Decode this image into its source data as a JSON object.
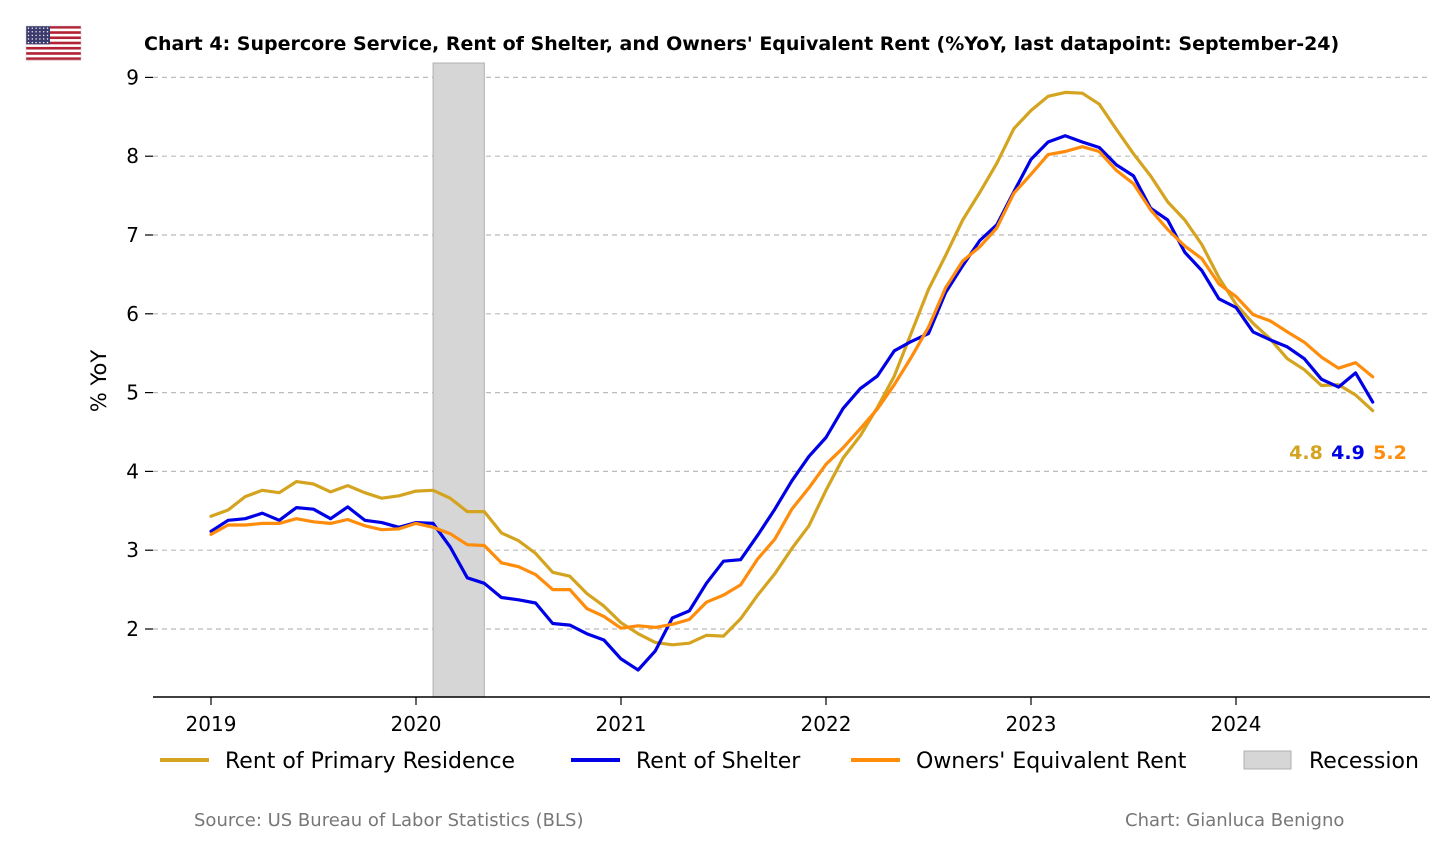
{
  "chart_data": {
    "type": "line",
    "title": "Chart 4: Supercore Service, Rent of Shelter, and Owners' Equivalent Rent (%YoY, last datapoint: September-24)",
    "ylabel": "% YoY",
    "xlabel": "",
    "x_tick_labels": [
      "2019",
      "2020",
      "2021",
      "2022",
      "2023",
      "2024"
    ],
    "y_tick_labels": [
      "2",
      "3",
      "4",
      "5",
      "6",
      "7",
      "8",
      "9"
    ],
    "ylim": [
      1.2,
      9.2
    ],
    "xlim": [
      "2018-09",
      "2024-12"
    ],
    "grid": "horizontal dashed",
    "legend_position": "bottom",
    "x": [
      "2019-01",
      "2019-02",
      "2019-03",
      "2019-04",
      "2019-05",
      "2019-06",
      "2019-07",
      "2019-08",
      "2019-09",
      "2019-10",
      "2019-11",
      "2019-12",
      "2020-01",
      "2020-02",
      "2020-03",
      "2020-04",
      "2020-05",
      "2020-06",
      "2020-07",
      "2020-08",
      "2020-09",
      "2020-10",
      "2020-11",
      "2020-12",
      "2021-01",
      "2021-02",
      "2021-03",
      "2021-04",
      "2021-05",
      "2021-06",
      "2021-07",
      "2021-08",
      "2021-09",
      "2021-10",
      "2021-11",
      "2021-12",
      "2022-01",
      "2022-02",
      "2022-03",
      "2022-04",
      "2022-05",
      "2022-06",
      "2022-07",
      "2022-08",
      "2022-09",
      "2022-10",
      "2022-11",
      "2022-12",
      "2023-01",
      "2023-02",
      "2023-03",
      "2023-04",
      "2023-05",
      "2023-06",
      "2023-07",
      "2023-08",
      "2023-09",
      "2023-10",
      "2023-11",
      "2023-12",
      "2024-01",
      "2024-02",
      "2024-03",
      "2024-04",
      "2024-05",
      "2024-06",
      "2024-07",
      "2024-08",
      "2024-09"
    ],
    "series": [
      {
        "name": "Rent of Primary Residence",
        "color": "#d4a420",
        "values": [
          3.43,
          3.51,
          3.68,
          3.76,
          3.73,
          3.87,
          3.84,
          3.74,
          3.82,
          3.73,
          3.66,
          3.69,
          3.75,
          3.76,
          3.66,
          3.49,
          3.49,
          3.22,
          3.12,
          2.96,
          2.72,
          2.67,
          2.45,
          2.29,
          2.08,
          1.94,
          1.83,
          1.8,
          1.82,
          1.92,
          1.91,
          2.13,
          2.43,
          2.7,
          3.02,
          3.31,
          3.76,
          4.17,
          4.45,
          4.81,
          5.21,
          5.76,
          6.31,
          6.74,
          7.19,
          7.54,
          7.91,
          8.35,
          8.58,
          8.76,
          8.81,
          8.8,
          8.66,
          8.34,
          8.03,
          7.75,
          7.42,
          7.19,
          6.88,
          6.46,
          6.12,
          5.88,
          5.68,
          5.43,
          5.29,
          5.09,
          5.1,
          4.97,
          4.77
        ]
      },
      {
        "name": "Rent of Shelter",
        "color": "#0000e6",
        "values": [
          3.24,
          3.38,
          3.4,
          3.47,
          3.38,
          3.54,
          3.52,
          3.4,
          3.55,
          3.38,
          3.35,
          3.29,
          3.35,
          3.34,
          3.04,
          2.65,
          2.58,
          2.4,
          2.37,
          2.33,
          2.07,
          2.05,
          1.94,
          1.86,
          1.62,
          1.48,
          1.72,
          2.14,
          2.23,
          2.58,
          2.86,
          2.88,
          3.19,
          3.52,
          3.88,
          4.19,
          4.43,
          4.8,
          5.05,
          5.21,
          5.53,
          5.65,
          5.75,
          6.27,
          6.61,
          6.93,
          7.13,
          7.55,
          7.96,
          8.18,
          8.26,
          8.18,
          8.11,
          7.89,
          7.75,
          7.34,
          7.19,
          6.78,
          6.55,
          6.19,
          6.08,
          5.77,
          5.67,
          5.58,
          5.43,
          5.17,
          5.07,
          5.25,
          4.88
        ]
      },
      {
        "name": "Owners' Equivalent Rent",
        "color": "#ff8c0a",
        "values": [
          3.2,
          3.32,
          3.32,
          3.34,
          3.34,
          3.4,
          3.36,
          3.34,
          3.39,
          3.31,
          3.26,
          3.27,
          3.34,
          3.29,
          3.21,
          3.07,
          3.06,
          2.84,
          2.79,
          2.69,
          2.5,
          2.5,
          2.26,
          2.16,
          2.01,
          2.04,
          2.02,
          2.06,
          2.12,
          2.34,
          2.43,
          2.56,
          2.89,
          3.14,
          3.52,
          3.79,
          4.09,
          4.3,
          4.54,
          4.79,
          5.1,
          5.45,
          5.83,
          6.33,
          6.67,
          6.85,
          7.09,
          7.53,
          7.77,
          8.02,
          8.06,
          8.12,
          8.06,
          7.82,
          7.65,
          7.32,
          7.07,
          6.86,
          6.7,
          6.38,
          6.22,
          5.99,
          5.91,
          5.77,
          5.64,
          5.45,
          5.31,
          5.38,
          5.2
        ]
      },
      {
        "name": "Recession",
        "color": "#d6d6d6",
        "shaded_range": [
          "2020-02",
          "2020-04"
        ]
      }
    ],
    "end_labels": [
      "4.8",
      "4.9",
      "5.2"
    ]
  },
  "footer": {
    "source": "Source: US Bureau of Labor Statistics (BLS)",
    "credit": "Chart: Gianluca Benigno"
  },
  "flag_icon": "us-flag-icon"
}
